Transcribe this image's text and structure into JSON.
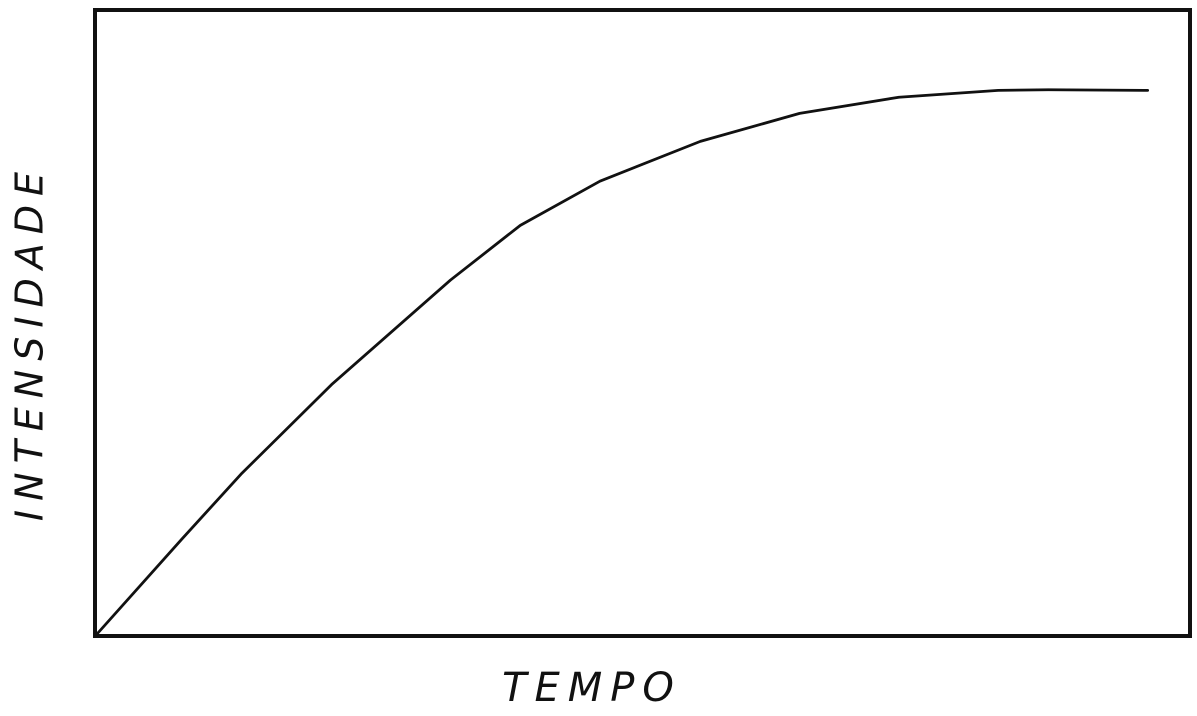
{
  "chart_data": {
    "type": "line",
    "xlabel": "TEMPO",
    "ylabel": "INTENSIDADE",
    "x": [
      0,
      7.8,
      13.2,
      21.5,
      32.4,
      38.8,
      46.1,
      55.3,
      64.4,
      73.5,
      82.6,
      87.2,
      96.3
    ],
    "series": [
      {
        "color": "#111111",
        "values": [
          0,
          15.3,
          25.7,
          40.1,
          56.9,
          65.7,
          72.8,
          79.2,
          83.7,
          86.3,
          87.4,
          87.5,
          87.4
        ]
      }
    ],
    "xlim": [
      0,
      100
    ],
    "ylim": [
      0,
      100
    ],
    "grid": false
  }
}
